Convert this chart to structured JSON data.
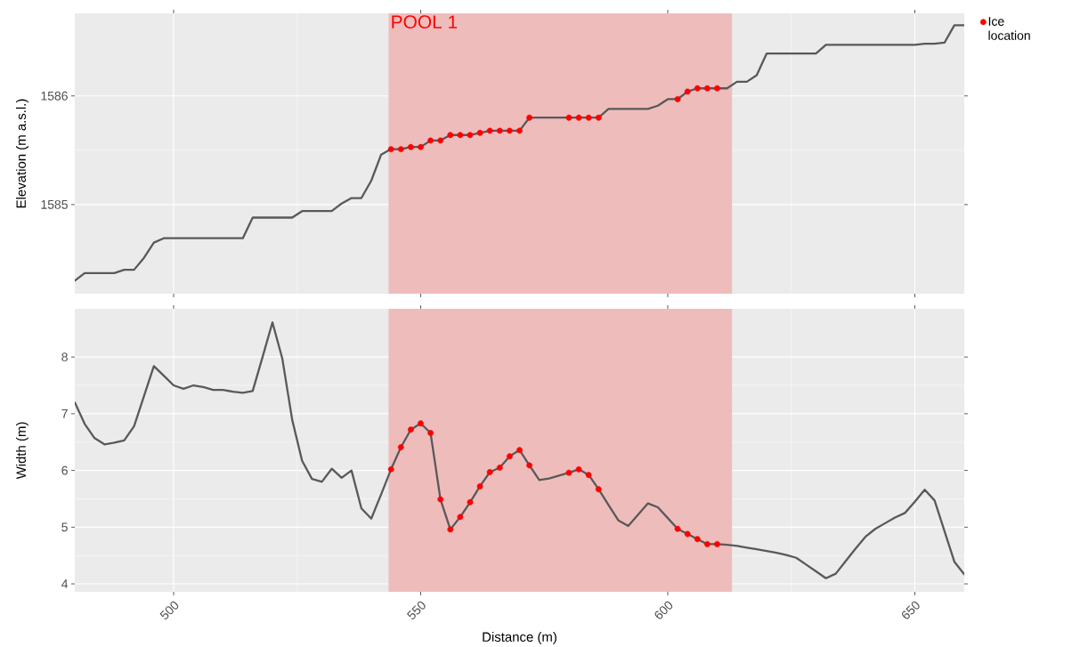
{
  "chart_data": [
    {
      "type": "line",
      "ylabel": "Elevation (m a.s.l.)",
      "x": [
        480,
        482,
        484,
        486,
        488,
        490,
        492,
        494,
        496,
        498,
        500,
        502,
        504,
        506,
        508,
        510,
        512,
        514,
        516,
        518,
        520,
        522,
        524,
        526,
        528,
        530,
        532,
        534,
        536,
        538,
        540,
        542,
        544,
        546,
        548,
        550,
        552,
        554,
        556,
        558,
        560,
        562,
        564,
        566,
        568,
        570,
        572,
        574,
        576,
        578,
        580,
        582,
        584,
        586,
        588,
        590,
        592,
        594,
        596,
        598,
        600,
        602,
        604,
        606,
        608,
        610,
        612,
        614,
        616,
        618,
        620,
        622,
        624,
        626,
        628,
        630,
        632,
        634,
        636,
        638,
        640,
        642,
        644,
        646,
        648,
        650,
        652,
        654,
        656,
        658,
        660
      ],
      "series": [
        {
          "color": "#595959",
          "values": [
            1584.3,
            1584.37,
            1584.37,
            1584.37,
            1584.37,
            1584.4,
            1584.4,
            1584.51,
            1584.65,
            1584.69,
            1584.69,
            1584.69,
            1584.69,
            1584.69,
            1584.69,
            1584.69,
            1584.69,
            1584.69,
            1584.88,
            1584.88,
            1584.88,
            1584.88,
            1584.88,
            1584.94,
            1584.94,
            1584.94,
            1584.94,
            1585.01,
            1585.06,
            1585.06,
            1585.22,
            1585.46,
            1585.51,
            1585.51,
            1585.53,
            1585.53,
            1585.59,
            1585.59,
            1585.64,
            1585.64,
            1585.64,
            1585.66,
            1585.68,
            1585.68,
            1585.68,
            1585.68,
            1585.8,
            1585.8,
            1585.8,
            1585.8,
            1585.8,
            1585.8,
            1585.8,
            1585.8,
            1585.88,
            1585.88,
            1585.88,
            1585.88,
            1585.88,
            1585.91,
            1585.97,
            1585.97,
            1586.04,
            1586.07,
            1586.07,
            1586.07,
            1586.07,
            1586.13,
            1586.13,
            1586.19,
            1586.39,
            1586.39,
            1586.39,
            1586.39,
            1586.39,
            1586.39,
            1586.47,
            1586.47,
            1586.47,
            1586.47,
            1586.47,
            1586.47,
            1586.47,
            1586.47,
            1586.47,
            1586.47,
            1586.48,
            1586.48,
            1586.49,
            1586.65,
            1586.65
          ]
        },
        {
          "type": "scatter",
          "name": "Ice location",
          "color": "#ff0000",
          "marker": "circle",
          "x": [
            544,
            546,
            548,
            550,
            552,
            554,
            556,
            558,
            560,
            562,
            564,
            566,
            568,
            570,
            572,
            580,
            582,
            584,
            586,
            602,
            604,
            606,
            608,
            610
          ],
          "values": [
            1585.51,
            1585.51,
            1585.53,
            1585.53,
            1585.59,
            1585.59,
            1585.64,
            1585.64,
            1585.64,
            1585.66,
            1585.68,
            1585.68,
            1585.68,
            1585.68,
            1585.8,
            1585.8,
            1585.8,
            1585.8,
            1585.8,
            1585.97,
            1586.04,
            1586.07,
            1586.07,
            1586.07
          ]
        }
      ],
      "xlim": [
        480,
        660
      ],
      "xticks": [
        500,
        550,
        600,
        650
      ],
      "ylim": [
        1584.18,
        1586.76
      ],
      "yticks": [
        1585,
        1586
      ],
      "tick_labels": "y",
      "grid": true,
      "legend": "right",
      "bands": [
        {
          "axis": "x",
          "from": 543.5,
          "to": 613,
          "label": "POOL 1",
          "color": "#efbcbc"
        }
      ]
    },
    {
      "type": "line",
      "xlabel": "Distance (m)",
      "ylabel": "Width (m)",
      "x": [
        480,
        482,
        484,
        486,
        488,
        490,
        492,
        494,
        496,
        498,
        500,
        502,
        504,
        506,
        508,
        510,
        512,
        514,
        516,
        518,
        520,
        522,
        524,
        526,
        528,
        530,
        532,
        534,
        536,
        538,
        540,
        542,
        544,
        546,
        548,
        550,
        552,
        554,
        556,
        558,
        560,
        562,
        564,
        566,
        568,
        570,
        572,
        574,
        576,
        578,
        580,
        582,
        584,
        586,
        588,
        590,
        592,
        594,
        596,
        598,
        600,
        602,
        604,
        606,
        608,
        610,
        612,
        614,
        616,
        618,
        620,
        622,
        624,
        626,
        628,
        630,
        632,
        634,
        636,
        638,
        640,
        642,
        644,
        646,
        648,
        650,
        652,
        654,
        656,
        658,
        660
      ],
      "series": [
        {
          "color": "#595959",
          "values": [
            7.2,
            6.82,
            6.57,
            6.46,
            6.49,
            6.53,
            6.78,
            7.31,
            7.84,
            7.67,
            7.5,
            7.44,
            7.5,
            7.47,
            7.42,
            7.42,
            7.39,
            7.37,
            7.4,
            8.0,
            8.61,
            7.97,
            6.89,
            6.17,
            5.85,
            5.8,
            6.03,
            5.87,
            6.0,
            5.33,
            5.15,
            5.58,
            6.02,
            6.41,
            6.72,
            6.83,
            6.66,
            5.49,
            4.96,
            5.18,
            5.44,
            5.72,
            5.97,
            6.05,
            6.25,
            6.36,
            6.09,
            5.83,
            5.86,
            5.91,
            5.96,
            6.02,
            5.92,
            5.67,
            5.39,
            5.12,
            5.02,
            5.22,
            5.42,
            5.35,
            5.16,
            4.97,
            4.88,
            4.79,
            4.7,
            4.7,
            4.69,
            4.67,
            4.64,
            4.61,
            4.58,
            4.55,
            4.51,
            4.46,
            4.34,
            4.22,
            4.1,
            4.18,
            4.4,
            4.62,
            4.83,
            4.97,
            5.07,
            5.17,
            5.25,
            5.45,
            5.66,
            5.47,
            4.93,
            4.39,
            4.17
          ]
        },
        {
          "type": "scatter",
          "color": "#ff0000",
          "marker": "circle",
          "x": [
            544,
            546,
            548,
            550,
            552,
            554,
            556,
            558,
            560,
            562,
            564,
            566,
            568,
            570,
            572,
            580,
            582,
            584,
            586,
            602,
            604,
            606,
            608,
            610
          ],
          "values": [
            6.02,
            6.41,
            6.72,
            6.83,
            6.66,
            5.49,
            4.96,
            5.18,
            5.44,
            5.72,
            5.97,
            6.05,
            6.25,
            6.36,
            6.09,
            5.96,
            6.02,
            5.92,
            5.67,
            4.97,
            4.88,
            4.79,
            4.7,
            4.7
          ]
        }
      ],
      "xlim": [
        480,
        660
      ],
      "xticks": [
        500,
        550,
        600,
        650
      ],
      "ylim": [
        3.86,
        8.85
      ],
      "yticks": [
        4,
        5,
        6,
        7,
        8
      ],
      "grid": true,
      "legend": false,
      "bands": [
        {
          "axis": "x",
          "from": 543.5,
          "to": 613,
          "color": "#efbcbc"
        }
      ]
    }
  ]
}
